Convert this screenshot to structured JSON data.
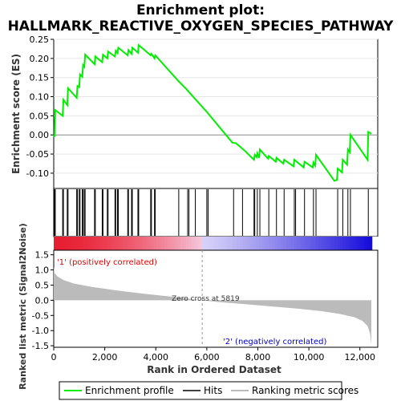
{
  "chart_data": {
    "type": "line",
    "title": "Enrichment plot:",
    "subtitle": "HALLMARK_REACTIVE_OXYGEN_SPECIES_PATHWAY",
    "xlabel": "Rank in Ordered Dataset",
    "xlim": [
      0,
      12700
    ],
    "x_ticks": [
      0,
      2000,
      4000,
      6000,
      8000,
      10000,
      12000
    ],
    "x_tick_labels": [
      "0",
      "2,000",
      "4,000",
      "6,000",
      "8,000",
      "10,000",
      "12,000"
    ],
    "es_panel": {
      "ylabel": "Enrichment score (ES)",
      "ylim": [
        -0.14,
        0.25
      ],
      "y_ticks": [
        -0.1,
        -0.05,
        0.0,
        0.05,
        0.1,
        0.15,
        0.2,
        0.25
      ],
      "y_tick_labels": [
        "-0.10",
        "-0.05",
        "0.00",
        "0.05",
        "0.10",
        "0.15",
        "0.20",
        "0.25"
      ],
      "series_name": "Enrichment profile",
      "color": "#00ee00",
      "points": [
        [
          0,
          0.0
        ],
        [
          30,
          -0.005
        ],
        [
          60,
          0.065
        ],
        [
          350,
          0.05
        ],
        [
          380,
          0.092
        ],
        [
          530,
          0.078
        ],
        [
          560,
          0.122
        ],
        [
          900,
          0.097
        ],
        [
          930,
          0.128
        ],
        [
          1000,
          0.125
        ],
        [
          1030,
          0.158
        ],
        [
          1120,
          0.152
        ],
        [
          1150,
          0.183
        ],
        [
          1200,
          0.178
        ],
        [
          1230,
          0.21
        ],
        [
          1600,
          0.185
        ],
        [
          1630,
          0.205
        ],
        [
          1900,
          0.19
        ],
        [
          1930,
          0.21
        ],
        [
          2100,
          0.2
        ],
        [
          2130,
          0.218
        ],
        [
          2400,
          0.205
        ],
        [
          2430,
          0.22
        ],
        [
          2500,
          0.214
        ],
        [
          2530,
          0.228
        ],
        [
          2900,
          0.208
        ],
        [
          2930,
          0.222
        ],
        [
          3050,
          0.212
        ],
        [
          3080,
          0.228
        ],
        [
          3300,
          0.215
        ],
        [
          3330,
          0.235
        ],
        [
          3800,
          0.208
        ],
        [
          3830,
          0.212
        ],
        [
          3950,
          0.2
        ],
        [
          3980,
          0.208
        ],
        [
          4900,
          0.14
        ],
        [
          5200,
          0.12
        ],
        [
          5300,
          0.112
        ],
        [
          6000,
          0.06
        ],
        [
          7000,
          -0.02
        ],
        [
          7150,
          -0.022
        ],
        [
          7500,
          -0.042
        ],
        [
          7800,
          -0.062
        ],
        [
          7850,
          -0.065
        ],
        [
          7880,
          -0.052
        ],
        [
          7950,
          -0.058
        ],
        [
          7980,
          -0.048
        ],
        [
          8050,
          -0.06
        ],
        [
          8080,
          -0.038
        ],
        [
          8400,
          -0.062
        ],
        [
          8430,
          -0.055
        ],
        [
          8700,
          -0.07
        ],
        [
          8730,
          -0.06
        ],
        [
          9000,
          -0.075
        ],
        [
          9030,
          -0.065
        ],
        [
          9400,
          -0.082
        ],
        [
          9430,
          -0.065
        ],
        [
          9800,
          -0.085
        ],
        [
          9830,
          -0.07
        ],
        [
          10150,
          -0.085
        ],
        [
          10180,
          -0.072
        ],
        [
          10250,
          -0.08
        ],
        [
          10280,
          -0.052
        ],
        [
          11000,
          -0.12
        ],
        [
          11100,
          -0.118
        ],
        [
          11130,
          -0.088
        ],
        [
          11300,
          -0.098
        ],
        [
          11330,
          -0.065
        ],
        [
          11500,
          -0.078
        ],
        [
          11530,
          -0.038
        ],
        [
          11600,
          -0.045
        ],
        [
          11630,
          -0.0
        ],
        [
          12300,
          -0.065
        ],
        [
          12330,
          0.008
        ],
        [
          12450,
          0.003
        ]
      ]
    },
    "hits_panel": {
      "positions": [
        30,
        60,
        350,
        380,
        530,
        560,
        900,
        930,
        1000,
        1030,
        1120,
        1150,
        1200,
        1230,
        1600,
        1630,
        1900,
        1930,
        2100,
        2130,
        2400,
        2430,
        2500,
        2530,
        2900,
        2930,
        3050,
        3080,
        3300,
        3330,
        3800,
        3830,
        3950,
        3980,
        4900,
        5250,
        5300,
        5550,
        6000,
        6050,
        7050,
        7400,
        7850,
        7880,
        7980,
        8080,
        8430,
        8730,
        9030,
        9430,
        9480,
        9830,
        10180,
        10280,
        11130,
        11330,
        11530,
        11630,
        12330
      ]
    },
    "rank_panel": {
      "ylabel": "Ranked list metric (Signal2Noise)",
      "ylim": [
        -1.55,
        1.65
      ],
      "y_ticks": [
        -1.5,
        -1.0,
        -0.5,
        0.0,
        0.5,
        1.0,
        1.5
      ],
      "y_tick_labels": [
        "-1.5",
        "-1.0",
        "-0.5",
        "0.0",
        "0.5",
        "1.0",
        "1.5"
      ],
      "zero_cross_rank": 5819,
      "zero_cross_label": "Zero cross at 5819",
      "pos_label": "'1' (positively correlated)",
      "neg_label": "'2' (negatively correlated)",
      "metric_curve": [
        [
          0,
          1.1
        ],
        [
          30,
          0.9
        ],
        [
          150,
          0.78
        ],
        [
          400,
          0.66
        ],
        [
          800,
          0.55
        ],
        [
          1500,
          0.44
        ],
        [
          2500,
          0.32
        ],
        [
          3500,
          0.22
        ],
        [
          4500,
          0.13
        ],
        [
          5200,
          0.06
        ],
        [
          5819,
          0.0
        ],
        [
          6500,
          -0.06
        ],
        [
          7500,
          -0.13
        ],
        [
          8500,
          -0.2
        ],
        [
          9500,
          -0.27
        ],
        [
          10500,
          -0.36
        ],
        [
          11200,
          -0.45
        ],
        [
          11800,
          -0.56
        ],
        [
          12100,
          -0.68
        ],
        [
          12300,
          -0.85
        ],
        [
          12400,
          -1.1
        ],
        [
          12450,
          -1.45
        ]
      ]
    },
    "legend": {
      "items": [
        "Enrichment profile",
        "Hits",
        "Ranking metric scores"
      ],
      "colors": [
        "#00ee00",
        "#000000",
        "#bbbbbb"
      ]
    }
  }
}
